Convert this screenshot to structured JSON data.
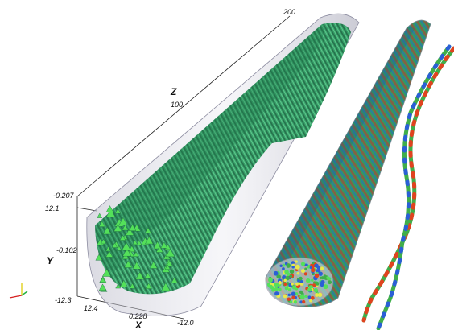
{
  "axes": {
    "z_name": "Z",
    "y_name": "Y",
    "x_name": "X",
    "z_ticks": [
      "200.",
      "100."
    ],
    "y_ticks": [
      "12.1",
      "-0.102",
      "-12.3"
    ],
    "x_ticks": [
      "12.4",
      "0.228",
      "-12.0"
    ],
    "z_bottom_label": "-0.207"
  },
  "colors": {
    "fiber_bundle": "#2f9c63",
    "fiber_tips": "#54e05a",
    "tube_shell": "#c9c9d6",
    "colormap_low": "#2a5fd6",
    "colormap_mid": "#3fae4a",
    "colormap_high": "#e0431f"
  },
  "orientation_widget": {
    "x_color": "#d62020",
    "y_color": "#e0d020",
    "z_color": "#20b040"
  },
  "objects": {
    "left": "fiber-bundle-in-tube",
    "middle": "colored-fiber-tube",
    "right": "twisted-fiber-pair"
  }
}
